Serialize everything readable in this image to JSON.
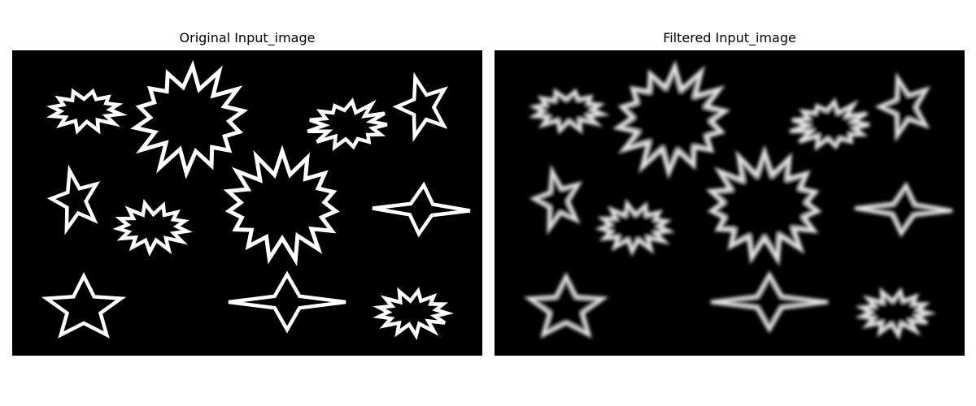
{
  "panels": [
    {
      "title": "Original Input_image",
      "style": "sharp"
    },
    {
      "title": "Filtered Input_image",
      "style": "blurred"
    }
  ],
  "colors": {
    "background": "#000000",
    "shape": "#ffffff"
  },
  "shapes": [
    {
      "kind": "burst",
      "name": "burst-top-left"
    },
    {
      "kind": "burst",
      "name": "burst-large-top"
    },
    {
      "kind": "burst",
      "name": "burst-top-right"
    },
    {
      "kind": "star",
      "name": "star-top-right"
    },
    {
      "kind": "star",
      "name": "star-mid-left"
    },
    {
      "kind": "burst",
      "name": "burst-mid-left"
    },
    {
      "kind": "burst",
      "name": "burst-large-center"
    },
    {
      "kind": "star",
      "name": "star-mid-right"
    },
    {
      "kind": "star",
      "name": "star-bottom-left"
    },
    {
      "kind": "star",
      "name": "star-bottom-center"
    },
    {
      "kind": "burst",
      "name": "burst-bottom-right"
    }
  ]
}
